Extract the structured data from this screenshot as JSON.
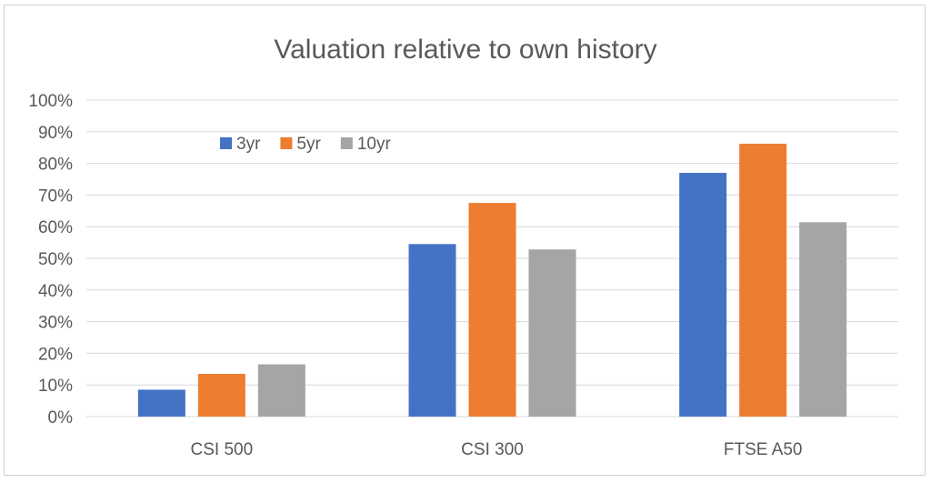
{
  "chart_data": {
    "type": "bar",
    "title": "Valuation relative to own history",
    "categories": [
      "CSI 500",
      "CSI 300",
      "FTSE A50"
    ],
    "series": [
      {
        "name": "3yr",
        "color": "#4472c4",
        "values": [
          8.5,
          54.5,
          77.0
        ]
      },
      {
        "name": "5yr",
        "color": "#ed7d31",
        "values": [
          13.5,
          67.5,
          86.2
        ]
      },
      {
        "name": "10yr",
        "color": "#a5a5a5",
        "values": [
          16.5,
          52.8,
          61.4
        ]
      }
    ],
    "ylim": [
      0,
      100
    ],
    "yticks": [
      0,
      10,
      20,
      30,
      40,
      50,
      60,
      70,
      80,
      90,
      100
    ],
    "ytick_labels": [
      "0%",
      "10%",
      "20%",
      "30%",
      "40%",
      "50%",
      "60%",
      "70%",
      "80%",
      "90%",
      "100%"
    ],
    "xlabel": "",
    "ylabel": "",
    "grid": true,
    "legend_position": "top-left"
  }
}
